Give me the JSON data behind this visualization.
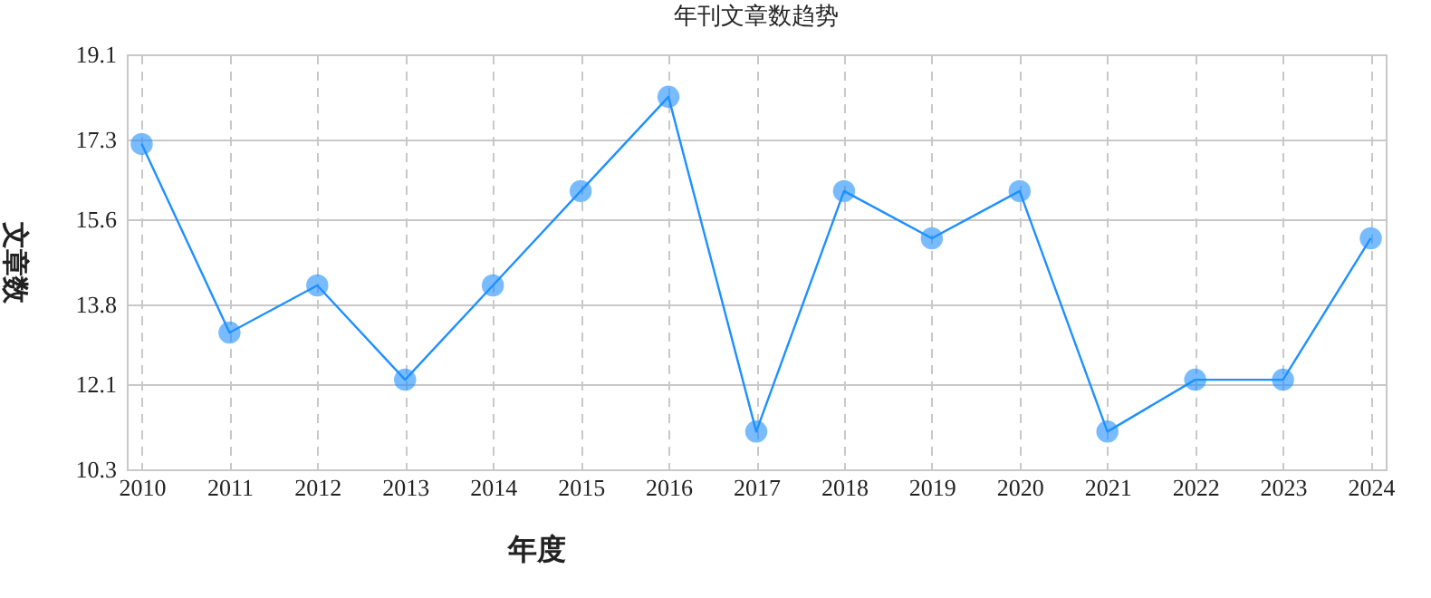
{
  "chart_data": {
    "type": "line",
    "title": "年刊文章数趋势",
    "xlabel": "年度",
    "ylabel": "文章数",
    "categories": [
      "2010",
      "2011",
      "2012",
      "2013",
      "2014",
      "2015",
      "2016",
      "2017",
      "2018",
      "2019",
      "2020",
      "2021",
      "2022",
      "2023",
      "2024"
    ],
    "series": [
      {
        "color": "#1e90ff",
        "values": [
          17.2,
          13.2,
          14.2,
          12.2,
          14.2,
          16.2,
          18.2,
          11.1,
          16.2,
          15.2,
          16.2,
          11.1,
          12.2,
          12.2,
          15.2
        ]
      }
    ],
    "ylim": [
      10.3,
      19.1
    ],
    "yticks": [
      10.3,
      12.1,
      13.8,
      15.6,
      17.3,
      19.1
    ],
    "grid": true,
    "marker": "circle",
    "line_style": "solid"
  }
}
